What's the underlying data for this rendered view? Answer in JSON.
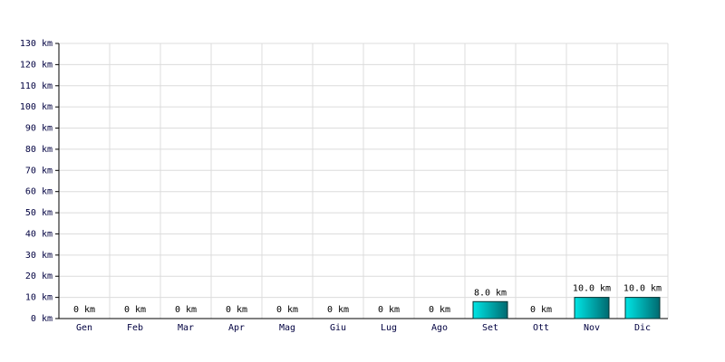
{
  "chart_data": {
    "type": "bar",
    "categories": [
      "Gen",
      "Feb",
      "Mar",
      "Apr",
      "Mag",
      "Giu",
      "Lug",
      "Ago",
      "Set",
      "Ott",
      "Nov",
      "Dic"
    ],
    "values": [
      0,
      0,
      0,
      0,
      0,
      0,
      0,
      0,
      8,
      0,
      10,
      10
    ],
    "value_labels": [
      "0 km",
      "0 km",
      "0 km",
      "0 km",
      "0 km",
      "0 km",
      "0 km",
      "0 km",
      "8.0 km",
      "0 km",
      "10.0 km",
      "10.0 km"
    ],
    "color": "#00e5e5",
    "ylim": [
      0,
      130
    ],
    "yticks": [
      {
        "value": 0,
        "label": "0 km"
      },
      {
        "value": 10,
        "label": "10 km"
      },
      {
        "value": 20,
        "label": "20 km"
      },
      {
        "value": 30,
        "label": "30 km"
      },
      {
        "value": 40,
        "label": "40 km"
      },
      {
        "value": 50,
        "label": "50 km"
      },
      {
        "value": 60,
        "label": "60 km"
      },
      {
        "value": 70,
        "label": "70 km"
      },
      {
        "value": 80,
        "label": "80 km"
      },
      {
        "value": 90,
        "label": "90 km"
      },
      {
        "value": 100,
        "label": "100 km"
      },
      {
        "value": 110,
        "label": "110 km"
      },
      {
        "value": 120,
        "label": "120 km"
      },
      {
        "value": 130,
        "label": "130 km"
      }
    ],
    "grid": true
  }
}
